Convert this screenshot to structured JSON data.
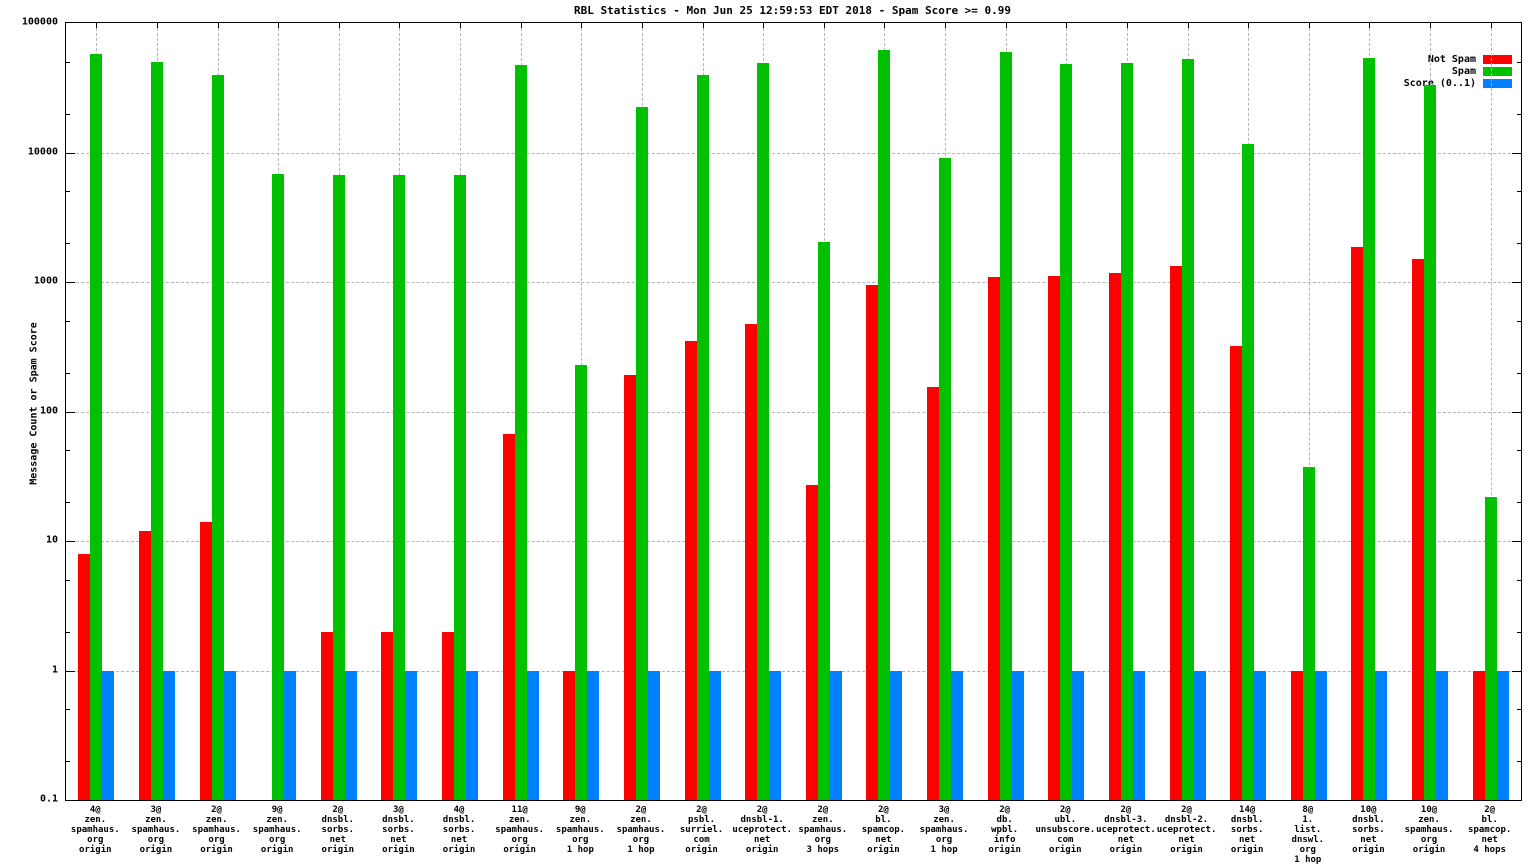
{
  "title": "RBL Statistics - Mon Jun 25 12:59:53 EDT 2018 - Spam Score >= 0.99",
  "ylabel": "Message Count or Spam Score",
  "legend": [
    {
      "label": "Not Spam",
      "color": "#ff0000"
    },
    {
      "label": "Spam",
      "color": "#00c000"
    },
    {
      "label": "Score (0..1)",
      "color": "#0080ff"
    }
  ],
  "colors": {
    "not_spam": "#ff0000",
    "spam": "#00c000",
    "score": "#0080ff",
    "grid": "#b4b4b4",
    "border": "#000000"
  },
  "chart_data": {
    "type": "bar",
    "y_scale": "log",
    "ylim": [
      0.1,
      100000
    ],
    "y_tick_labels": [
      "100000",
      "10000",
      "1000",
      "100",
      "10",
      "1",
      "0.1"
    ],
    "grid": "on",
    "legend_position": "top-right-inside",
    "title": "RBL Statistics - Mon Jun 25 12:59:53 EDT 2018 - Spam Score >= 0.99",
    "ylabel": "Message Count or Spam Score",
    "categories": [
      [
        "4@",
        "zen.",
        "spamhaus.",
        "org",
        "origin"
      ],
      [
        "3@",
        "zen.",
        "spamhaus.",
        "org",
        "origin"
      ],
      [
        "2@",
        "zen.",
        "spamhaus.",
        "org",
        "origin"
      ],
      [
        "9@",
        "zen.",
        "spamhaus.",
        "org",
        "origin"
      ],
      [
        "2@",
        "dnsbl.",
        "sorbs.",
        "net",
        "origin"
      ],
      [
        "3@",
        "dnsbl.",
        "sorbs.",
        "net",
        "origin"
      ],
      [
        "4@",
        "dnsbl.",
        "sorbs.",
        "net",
        "origin"
      ],
      [
        "11@",
        "zen.",
        "spamhaus.",
        "org",
        "origin"
      ],
      [
        "9@",
        "zen.",
        "spamhaus.",
        "org",
        "1 hop"
      ],
      [
        "2@",
        "zen.",
        "spamhaus.",
        "org",
        "1 hop"
      ],
      [
        "2@",
        "psbl.",
        "surriel.",
        "com",
        "origin"
      ],
      [
        "2@",
        "dnsbl-1.",
        "uceprotect.",
        "net",
        "origin"
      ],
      [
        "2@",
        "zen.",
        "spamhaus.",
        "org",
        "3 hops"
      ],
      [
        "2@",
        "bl.",
        "spamcop.",
        "net",
        "origin"
      ],
      [
        "3@",
        "zen.",
        "spamhaus.",
        "org",
        "1 hop"
      ],
      [
        "2@",
        "db.",
        "wpbl.",
        "info",
        "origin"
      ],
      [
        "2@",
        "ubl.",
        "unsubscore.",
        "com",
        "origin"
      ],
      [
        "2@",
        "dnsbl-3.",
        "uceprotect.",
        "net",
        "origin"
      ],
      [
        "2@",
        "dnsbl-2.",
        "uceprotect.",
        "net",
        "origin"
      ],
      [
        "14@",
        "dnsbl.",
        "sorbs.",
        "net",
        "origin"
      ],
      [
        "8@",
        "1.",
        "list.",
        "dnswl.",
        "org",
        "1 hop"
      ],
      [
        "10@",
        "dnsbl.",
        "sorbs.",
        "net",
        "origin"
      ],
      [
        "10@",
        "zen.",
        "spamhaus.",
        "org",
        "origin"
      ],
      [
        "2@",
        "bl.",
        "spamcop.",
        "net",
        "4 hops"
      ]
    ],
    "series": [
      {
        "name": "Not Spam",
        "color": "#ff0000",
        "values": [
          8,
          12,
          14,
          0,
          2,
          2,
          2,
          67,
          1,
          190,
          350,
          470,
          27,
          950,
          155,
          1100,
          1120,
          1180,
          1340,
          320,
          1,
          1870,
          1500,
          1
        ]
      },
      {
        "name": "Spam",
        "color": "#00c000",
        "values": [
          58000,
          50000,
          40000,
          6800,
          6700,
          6700,
          6700,
          47000,
          230,
          22500,
          40000,
          49000,
          2050,
          62000,
          9100,
          60000,
          48500,
          49500,
          53000,
          11700,
          37,
          54000,
          33500,
          22
        ]
      },
      {
        "name": "Score (0..1)",
        "color": "#0080ff",
        "values": [
          1,
          1,
          1,
          1,
          1,
          1,
          1,
          1,
          1,
          1,
          1,
          1,
          1,
          1,
          1,
          1,
          1,
          1,
          1,
          1,
          1,
          1,
          1,
          1
        ]
      }
    ]
  }
}
